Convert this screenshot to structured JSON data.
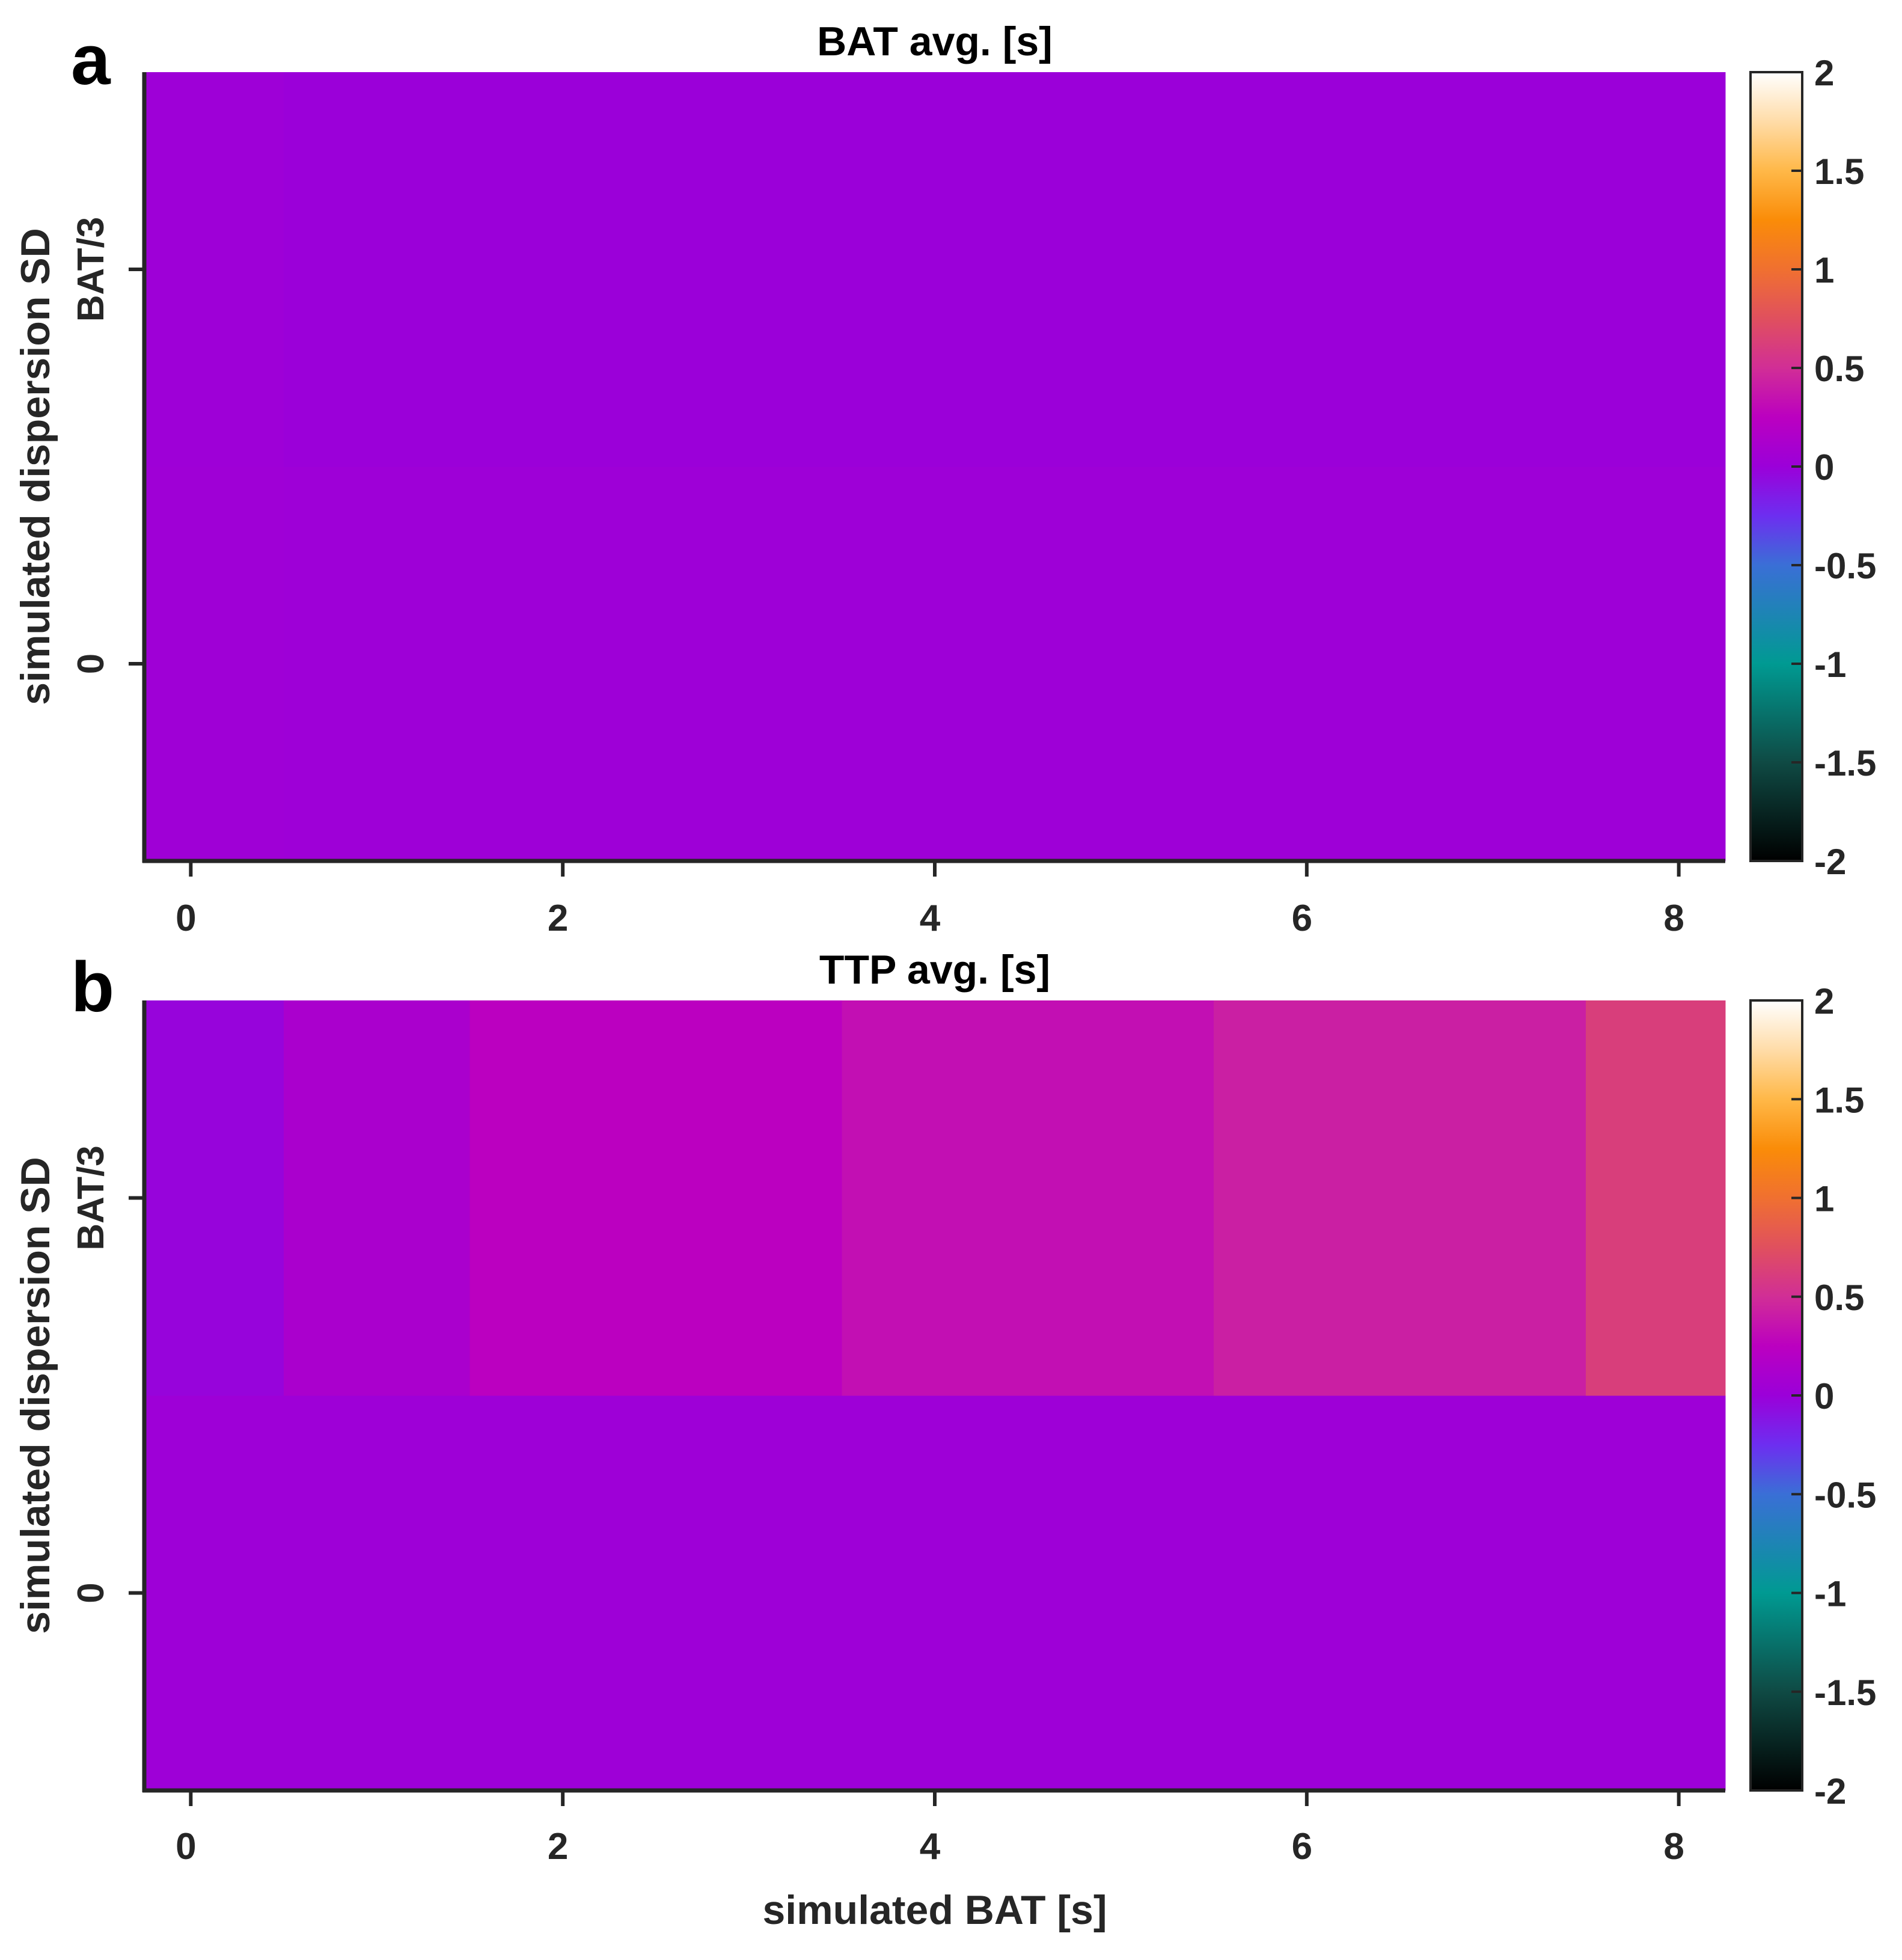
{
  "colors": {
    "axis": "#262626",
    "colorbar_stops": [
      {
        "v": -2.0,
        "c": "#000000"
      },
      {
        "v": -1.5,
        "c": "#0f4a44"
      },
      {
        "v": -1.0,
        "c": "#009a92"
      },
      {
        "v": -0.5,
        "c": "#3a6fd6"
      },
      {
        "v": -0.25,
        "c": "#6d2ef0"
      },
      {
        "v": 0.0,
        "c": "#9b00d9"
      },
      {
        "v": 0.25,
        "c": "#bb00c0"
      },
      {
        "v": 0.5,
        "c": "#d12e96"
      },
      {
        "v": 0.75,
        "c": "#e0505e"
      },
      {
        "v": 1.0,
        "c": "#f07030"
      },
      {
        "v": 1.25,
        "c": "#fa8c08"
      },
      {
        "v": 1.5,
        "c": "#ffb848"
      },
      {
        "v": 1.75,
        "c": "#ffdca8"
      },
      {
        "v": 2.0,
        "c": "#ffffff"
      }
    ]
  },
  "chart_data": [
    {
      "type": "heatmap",
      "panel_label": "a",
      "title": "BAT avg. [s]",
      "xlabel": "",
      "ylabel": "simulated dispersion SD",
      "x": [
        0,
        1,
        2,
        3,
        4,
        5,
        6,
        7,
        8
      ],
      "x_ticks": [
        0,
        2,
        4,
        6,
        8
      ],
      "xlim": [
        -0.25,
        8.25
      ],
      "y_categories": [
        "0",
        "BAT/3"
      ],
      "clim": [
        -2,
        2
      ],
      "colorbar_ticks": [
        "2",
        "1.5",
        "1",
        "0.5",
        "0",
        "-0.5",
        "-1",
        "-1.5",
        "-2"
      ],
      "values": [
        [
          0.03,
          0.02,
          0.02,
          0.02,
          0.02,
          0.02,
          0.02,
          0.02,
          0.02
        ],
        [
          0.02,
          0.0,
          0.0,
          0.0,
          0.0,
          0.0,
          0.0,
          0.0,
          0.0
        ]
      ]
    },
    {
      "type": "heatmap",
      "panel_label": "b",
      "title": "TTP avg. [s]",
      "xlabel": "simulated BAT [s]",
      "ylabel": "simulated dispersion SD",
      "x": [
        0,
        1,
        2,
        3,
        4,
        5,
        6,
        7,
        8
      ],
      "x_ticks": [
        0,
        2,
        4,
        6,
        8
      ],
      "xlim": [
        -0.25,
        8.25
      ],
      "y_categories": [
        "0",
        "BAT/3"
      ],
      "clim": [
        -2,
        2
      ],
      "colorbar_ticks": [
        "2",
        "1.5",
        "1",
        "0.5",
        "0",
        "-0.5",
        "-1",
        "-1.5",
        "-2"
      ],
      "values": [
        [
          0.02,
          0.02,
          0.02,
          0.02,
          0.02,
          0.02,
          0.02,
          0.02,
          0.02
        ],
        [
          -0.02,
          0.12,
          0.25,
          0.25,
          0.33,
          0.33,
          0.42,
          0.42,
          0.62
        ]
      ]
    }
  ]
}
